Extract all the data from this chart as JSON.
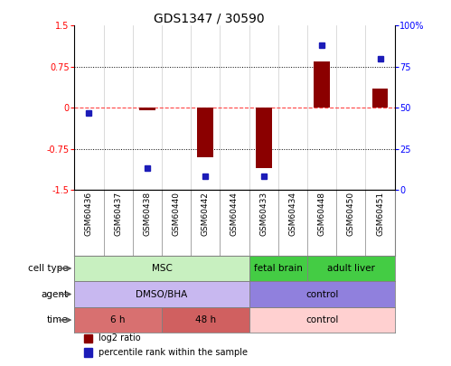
{
  "title": "GDS1347 / 30590",
  "samples": [
    "GSM60436",
    "GSM60437",
    "GSM60438",
    "GSM60440",
    "GSM60442",
    "GSM60444",
    "GSM60433",
    "GSM60434",
    "GSM60448",
    "GSM60450",
    "GSM60451"
  ],
  "log2_ratio": [
    0.0,
    0.0,
    -0.05,
    0.0,
    -0.9,
    0.0,
    -1.1,
    0.0,
    0.85,
    0.0,
    0.35
  ],
  "percentile_rank": [
    47,
    null,
    13,
    null,
    8,
    null,
    8,
    null,
    88,
    null,
    80
  ],
  "ylim": [
    -1.5,
    1.5
  ],
  "yticks_left": [
    -1.5,
    -0.75,
    0,
    0.75,
    1.5
  ],
  "yticks_right": [
    0,
    25,
    50,
    75,
    100
  ],
  "bar_color": "#8B0000",
  "dot_color": "#1C1CB8",
  "zero_line_color": "#FF4444",
  "cell_type_groups": [
    {
      "label": "MSC",
      "start": 0,
      "end": 5,
      "color": "#C8F0C0"
    },
    {
      "label": "fetal brain",
      "start": 6,
      "end": 7,
      "color": "#44CC44"
    },
    {
      "label": "adult liver",
      "start": 8,
      "end": 10,
      "color": "#44CC44"
    }
  ],
  "agent_groups": [
    {
      "label": "DMSO/BHA",
      "start": 0,
      "end": 5,
      "color": "#C8B8F0"
    },
    {
      "label": "control",
      "start": 6,
      "end": 10,
      "color": "#9080DD"
    }
  ],
  "time_groups": [
    {
      "label": "6 h",
      "start": 0,
      "end": 2,
      "color": "#D87070"
    },
    {
      "label": "48 h",
      "start": 3,
      "end": 5,
      "color": "#D06060"
    },
    {
      "label": "control",
      "start": 6,
      "end": 10,
      "color": "#FFD0D0"
    }
  ],
  "row_labels": [
    "cell type",
    "agent",
    "time"
  ],
  "legend_items": [
    {
      "label": "log2 ratio",
      "color": "#8B0000"
    },
    {
      "label": "percentile rank within the sample",
      "color": "#1C1CB8"
    }
  ]
}
